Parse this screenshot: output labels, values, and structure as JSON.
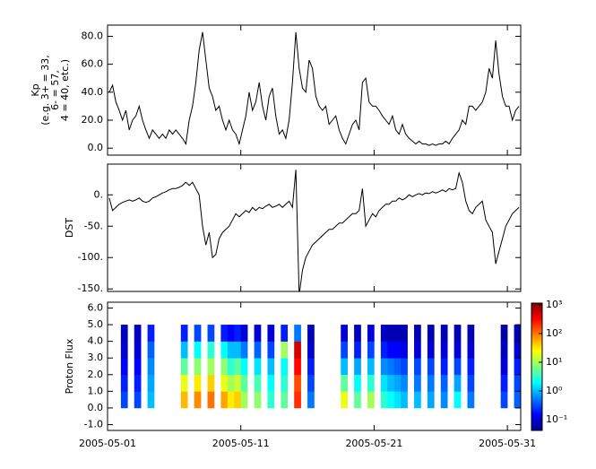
{
  "chart_data": [
    {
      "type": "line",
      "ylabel": [
        "Kp",
        "(e.g. 3+ = 33,",
        "6- = 57,",
        "4 = 40, etc.)"
      ],
      "color": "#000000",
      "xlim": [
        "2005-05-01",
        "2005-06-01"
      ],
      "xticks": [
        "2005-05-01",
        "2005-05-11",
        "2005-05-21",
        "2005-05-31"
      ],
      "ylim": [
        -5,
        88
      ],
      "yticks": [
        {
          "value": 0,
          "label": "0.0"
        },
        {
          "value": 20,
          "label": "20.0"
        },
        {
          "value": 40,
          "label": "40.0"
        },
        {
          "value": 60,
          "label": "60.0"
        },
        {
          "value": 80,
          "label": "80.0"
        }
      ],
      "values": [
        40,
        45,
        33,
        27,
        20,
        27,
        13,
        20,
        23,
        30,
        20,
        13,
        7,
        13,
        10,
        7,
        10,
        7,
        13,
        10,
        13,
        10,
        7,
        3,
        20,
        30,
        47,
        70,
        83,
        63,
        43,
        37,
        27,
        30,
        20,
        13,
        20,
        13,
        10,
        3,
        13,
        23,
        40,
        27,
        33,
        47,
        30,
        20,
        37,
        43,
        23,
        10,
        13,
        7,
        20,
        47,
        83,
        57,
        43,
        40,
        63,
        57,
        37,
        30,
        27,
        30,
        17,
        20,
        23,
        13,
        7,
        3,
        10,
        17,
        20,
        13,
        47,
        50,
        33,
        30,
        30,
        27,
        23,
        20,
        17,
        23,
        13,
        10,
        17,
        10,
        7,
        5,
        3,
        5,
        3,
        3,
        2,
        3,
        2,
        3,
        3,
        5,
        3,
        7,
        10,
        13,
        20,
        17,
        30,
        30,
        27,
        30,
        33,
        40,
        57,
        50,
        77,
        53,
        37,
        30,
        30,
        20,
        27,
        30
      ]
    },
    {
      "type": "line",
      "ylabel": [
        "DST"
      ],
      "color": "#000000",
      "xlim": [
        "2005-05-01",
        "2005-06-01"
      ],
      "xticks": [
        "2005-05-01",
        "2005-05-11",
        "2005-05-21",
        "2005-05-31"
      ],
      "ylim": [
        -154,
        49
      ],
      "yticks": [
        {
          "value": 0,
          "label": "0."
        },
        {
          "value": -50,
          "label": "-50."
        },
        {
          "value": -100,
          "label": "-100."
        },
        {
          "value": -150,
          "label": "-150."
        }
      ],
      "values": [
        -5,
        -25,
        -20,
        -15,
        -12,
        -10,
        -8,
        -10,
        -8,
        -5,
        -10,
        -12,
        -10,
        -5,
        -3,
        0,
        3,
        5,
        8,
        10,
        10,
        12,
        15,
        20,
        15,
        20,
        10,
        0,
        -50,
        -80,
        -60,
        -100,
        -95,
        -70,
        -60,
        -55,
        -50,
        -40,
        -30,
        -35,
        -30,
        -25,
        -28,
        -20,
        -25,
        -20,
        -22,
        -18,
        -15,
        -20,
        -18,
        -15,
        -20,
        -15,
        -10,
        -20,
        40,
        -160,
        -120,
        -100,
        -90,
        -80,
        -75,
        -70,
        -65,
        -60,
        -55,
        -55,
        -50,
        -45,
        -45,
        -40,
        -35,
        -30,
        -30,
        -25,
        10,
        -50,
        -40,
        -30,
        -35,
        -25,
        -20,
        -15,
        -15,
        -10,
        -10,
        -5,
        -8,
        -5,
        0,
        -3,
        0,
        2,
        0,
        3,
        2,
        5,
        3,
        5,
        8,
        5,
        10,
        8,
        10,
        35,
        20,
        -10,
        -25,
        -30,
        -20,
        -15,
        -10,
        -40,
        -50,
        -60,
        -110,
        -90,
        -70,
        -50,
        -40,
        -30,
        -25,
        -20
      ]
    },
    {
      "type": "heatmap",
      "ylabel": [
        "Proton Flux"
      ],
      "colormap": "jet",
      "log_color": true,
      "xlim": [
        "2005-05-01",
        "2005-06-01"
      ],
      "xticks": [
        {
          "value": "2005-05-01",
          "label": "2005-05-01"
        },
        {
          "value": "2005-05-11",
          "label": "2005-05-11"
        },
        {
          "value": "2005-05-21",
          "label": "2005-05-21"
        },
        {
          "value": "2005-05-31",
          "label": "2005-05-31"
        }
      ],
      "ylim": [
        -1.35,
        6.35
      ],
      "yticks": [
        {
          "value": -1,
          "label": "-1.0"
        },
        {
          "value": 0,
          "label": "0.0"
        },
        {
          "value": 1,
          "label": "1.0"
        },
        {
          "value": 2,
          "label": "2.0"
        },
        {
          "value": 3,
          "label": "3.0"
        },
        {
          "value": 4,
          "label": "4.0"
        },
        {
          "value": 5,
          "label": "5.0"
        },
        {
          "value": 6,
          "label": "6.0"
        }
      ],
      "ybins": [
        0,
        1,
        2,
        3,
        4,
        5
      ],
      "clim": [
        0.042,
        1150
      ],
      "cticks": [
        {
          "value": 0.1,
          "label": "10⁻¹"
        },
        {
          "value": 1,
          "label": "10⁰"
        },
        {
          "value": 10,
          "label": "10¹"
        },
        {
          "value": 100,
          "label": "10²"
        },
        {
          "value": 1000,
          "label": "10³"
        }
      ],
      "values": [
        null,
        null,
        [
          0.3,
          0.2,
          0.15,
          0.1,
          0.08
        ],
        null,
        [
          0.3,
          0.2,
          0.15,
          0.1,
          0.08
        ],
        null,
        [
          1,
          0.8,
          0.6,
          0.4,
          0.2
        ],
        null,
        null,
        null,
        null,
        [
          50,
          20,
          5,
          1,
          0.2
        ],
        null,
        [
          80,
          30,
          8,
          2,
          0.3
        ],
        null,
        [
          100,
          40,
          10,
          3,
          0.3
        ],
        null,
        [
          60,
          20,
          8,
          2,
          0.2
        ],
        [
          30,
          10,
          3,
          1,
          0.15
        ],
        [
          40,
          15,
          5,
          1,
          0.2
        ],
        [
          10,
          5,
          2,
          0.5,
          0.1
        ],
        null,
        [
          8,
          4,
          1.5,
          0.4,
          0.1
        ],
        null,
        [
          3,
          2,
          1,
          0.3,
          0.1
        ],
        null,
        [
          5,
          3,
          2,
          10,
          0.2
        ],
        null,
        [
          200,
          150,
          300,
          500,
          0.5
        ],
        null,
        [
          0.5,
          0.3,
          0.2,
          0.1,
          0.08
        ],
        null,
        null,
        null,
        null,
        [
          20,
          5,
          1,
          0.3,
          0.1
        ],
        null,
        [
          5,
          2,
          0.8,
          0.2,
          0.08
        ],
        null,
        [
          10,
          3,
          1,
          0.3,
          0.1
        ],
        null,
        [
          3,
          1.5,
          0.6,
          0.2,
          0.08
        ],
        [
          2,
          1,
          0.5,
          0.15,
          0.07
        ],
        [
          1.5,
          0.8,
          0.4,
          0.15,
          0.07
        ],
        [
          1,
          0.6,
          0.3,
          0.12,
          0.07
        ],
        null,
        [
          1,
          0.5,
          0.3,
          0.1,
          0.07
        ],
        null,
        [
          0.8,
          0.5,
          0.3,
          0.1,
          0.07
        ],
        null,
        [
          0.6,
          0.4,
          0.2,
          0.1,
          0.07
        ],
        null,
        [
          2,
          0.8,
          0.3,
          0.1,
          0.07
        ],
        null,
        [
          0.5,
          0.3,
          0.2,
          0.1,
          0.07
        ],
        null,
        null,
        null,
        null,
        [
          0.3,
          0.2,
          0.1,
          0.08,
          0.06
        ],
        null,
        [
          0.4,
          0.3,
          0.2,
          0.1,
          0.07
        ]
      ]
    }
  ]
}
